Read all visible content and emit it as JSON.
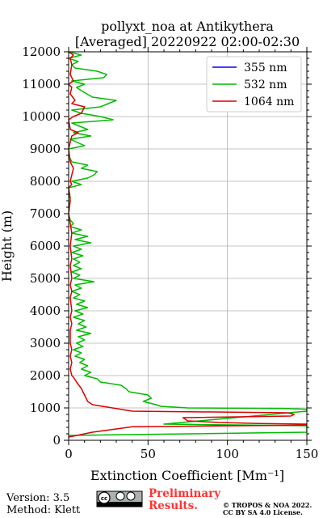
{
  "chart_data": {
    "type": "line",
    "title": [
      "pollyxt_noa at Antikythera",
      "[Averaged] 20220922 02:00-02:30"
    ],
    "xlabel": "Extinction Coefficient [Mm⁻¹]",
    "ylabel": "Height (m)",
    "xlim": [
      0,
      150
    ],
    "ylim": [
      0,
      12000
    ],
    "xticks": [
      "0",
      "50",
      "100",
      "150"
    ],
    "yticks": [
      "0",
      "1000",
      "2000",
      "3000",
      "4000",
      "5000",
      "6000",
      "7000",
      "8000",
      "9000",
      "10000",
      "11000",
      "12000"
    ],
    "grid": true,
    "legend_position": "top-right",
    "series": [
      {
        "name": "355 nm",
        "color": "#0000ff",
        "points": []
      },
      {
        "name": "532 nm",
        "color": "#00bb00",
        "points": [
          [
            0,
            150
          ],
          [
            150,
            250
          ],
          [
            150,
            450
          ],
          [
            60,
            500
          ],
          [
            150,
            900
          ],
          [
            150,
            960
          ],
          [
            135,
            985
          ],
          [
            75,
            1000
          ],
          [
            58,
            1050
          ],
          [
            55,
            1100
          ],
          [
            47,
            1200
          ],
          [
            52,
            1300
          ],
          [
            50,
            1400
          ],
          [
            38,
            1500
          ],
          [
            36,
            1600
          ],
          [
            33,
            1700
          ],
          [
            20,
            1800
          ],
          [
            18,
            1900
          ],
          [
            10,
            2000
          ],
          [
            14,
            2100
          ],
          [
            8,
            2200
          ],
          [
            12,
            2300
          ],
          [
            7,
            2400
          ],
          [
            10,
            2500
          ],
          [
            4,
            2600
          ],
          [
            8,
            2700
          ],
          [
            3,
            2800
          ],
          [
            9,
            2900
          ],
          [
            5,
            3000
          ],
          [
            10,
            3100
          ],
          [
            6,
            3200
          ],
          [
            14,
            3300
          ],
          [
            5,
            3400
          ],
          [
            11,
            3500
          ],
          [
            6,
            3600
          ],
          [
            10,
            3700
          ],
          [
            3,
            3800
          ],
          [
            9,
            3900
          ],
          [
            4,
            4000
          ],
          [
            12,
            4100
          ],
          [
            5,
            4200
          ],
          [
            10,
            4300
          ],
          [
            3,
            4400
          ],
          [
            7,
            4500
          ],
          [
            2,
            4600
          ],
          [
            8,
            4700
          ],
          [
            4,
            4800
          ],
          [
            16,
            4900
          ],
          [
            3,
            5000
          ],
          [
            7,
            5100
          ],
          [
            2,
            5200
          ],
          [
            8,
            5300
          ],
          [
            3,
            5400
          ],
          [
            7,
            5500
          ],
          [
            3,
            5600
          ],
          [
            9,
            5700
          ],
          [
            2,
            5800
          ],
          [
            8,
            5900
          ],
          [
            3,
            6000
          ],
          [
            14,
            6100
          ],
          [
            4,
            6200
          ],
          [
            12,
            6300
          ],
          [
            2,
            6400
          ],
          [
            8,
            6500
          ],
          [
            1,
            6600
          ],
          [
            3,
            6700
          ],
          [
            1,
            6800
          ],
          [
            0,
            7000
          ],
          [
            1,
            7500
          ],
          [
            0,
            7800
          ],
          [
            8,
            7900
          ],
          [
            2,
            8000
          ],
          [
            12,
            8100
          ],
          [
            16,
            8200
          ],
          [
            18,
            8300
          ],
          [
            8,
            8400
          ],
          [
            12,
            8500
          ],
          [
            2,
            8600
          ],
          [
            0,
            8800
          ],
          [
            0,
            9000
          ],
          [
            10,
            9100
          ],
          [
            1,
            9300
          ],
          [
            14,
            9400
          ],
          [
            3,
            9500
          ],
          [
            12,
            9600
          ],
          [
            2,
            9800
          ],
          [
            28,
            9900
          ],
          [
            20,
            10000
          ],
          [
            8,
            10100
          ],
          [
            2,
            10200
          ],
          [
            20,
            10300
          ],
          [
            25,
            10400
          ],
          [
            30,
            10500
          ],
          [
            15,
            10600
          ],
          [
            8,
            10800
          ],
          [
            5,
            10900
          ],
          [
            10,
            11000
          ],
          [
            2,
            11100
          ],
          [
            22,
            11200
          ],
          [
            24,
            11300
          ],
          [
            18,
            11400
          ],
          [
            4,
            11500
          ],
          [
            2,
            11600
          ],
          [
            6,
            11700
          ],
          [
            0,
            11800
          ],
          [
            8,
            11900
          ],
          [
            0,
            12000
          ]
        ]
      },
      {
        "name": "1064 nm",
        "color": "#dd0000",
        "points": [
          [
            0,
            100
          ],
          [
            15,
            250
          ],
          [
            30,
            350
          ],
          [
            40,
            420
          ],
          [
            150,
            470
          ],
          [
            150,
            500
          ],
          [
            120,
            520
          ],
          [
            95,
            550
          ],
          [
            75,
            600
          ],
          [
            72,
            700
          ],
          [
            140,
            750
          ],
          [
            142,
            800
          ],
          [
            138,
            850
          ],
          [
            40,
            900
          ],
          [
            15,
            1100
          ],
          [
            12,
            1200
          ],
          [
            10,
            1400
          ],
          [
            9,
            1500
          ],
          [
            8,
            1600
          ],
          [
            5,
            1800
          ],
          [
            3,
            1950
          ],
          [
            2,
            2000
          ],
          [
            1,
            2200
          ],
          [
            2,
            2400
          ],
          [
            1,
            2600
          ],
          [
            2,
            2800
          ],
          [
            1,
            3000
          ],
          [
            1,
            3400
          ],
          [
            2,
            3600
          ],
          [
            1,
            3800
          ],
          [
            2,
            4000
          ],
          [
            1,
            4400
          ],
          [
            2,
            4600
          ],
          [
            1,
            4800
          ],
          [
            2,
            5000
          ],
          [
            1,
            5400
          ],
          [
            2,
            5600
          ],
          [
            1,
            6000
          ],
          [
            2,
            6400
          ],
          [
            0,
            7000
          ],
          [
            1,
            7400
          ],
          [
            0,
            7800
          ],
          [
            2,
            7900
          ],
          [
            1,
            8000
          ],
          [
            3,
            8400
          ],
          [
            1,
            8600
          ],
          [
            0,
            9000
          ],
          [
            2,
            9400
          ],
          [
            6,
            9500
          ],
          [
            1,
            9600
          ],
          [
            0,
            9900
          ],
          [
            3,
            10000
          ],
          [
            8,
            10100
          ],
          [
            10,
            10300
          ],
          [
            2,
            10400
          ],
          [
            4,
            10500
          ],
          [
            1,
            10700
          ],
          [
            2,
            10900
          ],
          [
            0,
            11000
          ],
          [
            3,
            11100
          ],
          [
            1,
            11300
          ],
          [
            2,
            11600
          ],
          [
            1,
            11800
          ],
          [
            3,
            11900
          ],
          [
            0,
            12000
          ]
        ]
      }
    ]
  },
  "footer": {
    "version": "Version: 3.5",
    "method": "Method: Klett",
    "license_badge": "cc-by-sa-icon",
    "prelim_line1": "Preliminary",
    "prelim_line2": "Results.",
    "prelim_color": "#ff3333",
    "copyright_line1": "© TROPOS & NOA 2022.",
    "copyright_line2": "CC BY SA 4.0 License."
  }
}
